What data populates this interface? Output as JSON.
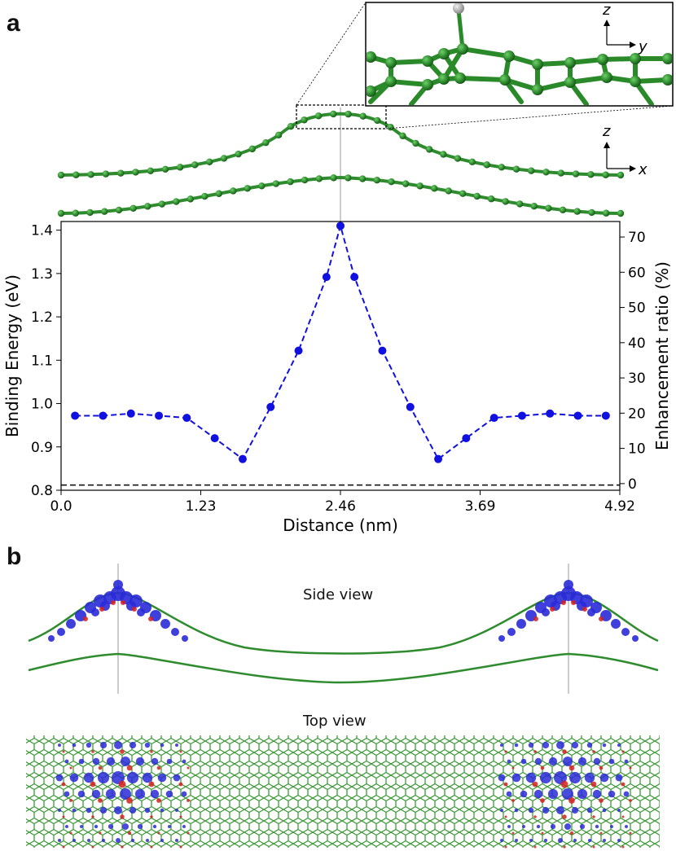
{
  "panels": {
    "a_label": "a",
    "b_label": "b",
    "side_view": "Side view",
    "top_view": "Top view"
  },
  "axis_labels": {
    "x_top_axis": "x",
    "z_top_axis": "z",
    "y_inset_axis": "y",
    "z_inset_axis": "z"
  },
  "colors": {
    "carbon": "#2e8b2e",
    "carbon_dark": "#1f6b1f",
    "series": "#1010e0",
    "reference": "#000000",
    "hydrogen": "#a8a8a8",
    "density_neg": "#2a2ad8",
    "density_pos": "#d62020"
  },
  "chart_data": {
    "type": "line",
    "xlabel": "Distance (nm)",
    "ylabel": "Binding Energy (eV)",
    "y2label": "Enhancement ratio (%)",
    "xlim": [
      0,
      4.92
    ],
    "ylim": [
      0.8,
      1.42
    ],
    "y2lim": [
      -1.88,
      74.4
    ],
    "x_ticks": [
      "0.0",
      "1.23",
      "2.46",
      "3.69",
      "4.92"
    ],
    "x_tick_values": [
      0,
      1.23,
      2.46,
      3.69,
      4.92
    ],
    "y_ticks": [
      "0.8",
      "0.9",
      "1.0",
      "1.1",
      "1.2",
      "1.3",
      "1.4"
    ],
    "y_tick_values": [
      0.8,
      0.9,
      1.0,
      1.1,
      1.2,
      1.3,
      1.4
    ],
    "y2_ticks": [
      "0",
      "10",
      "20",
      "30",
      "40",
      "50",
      "60",
      "70"
    ],
    "y2_tick_values": [
      0,
      10,
      20,
      30,
      40,
      50,
      60,
      70
    ],
    "series": [
      {
        "x": [
          0.123,
          0.369,
          0.615,
          0.861,
          1.107,
          1.353,
          1.599,
          1.845,
          2.091,
          2.337,
          2.46,
          2.583,
          2.829,
          3.075,
          3.321,
          3.567,
          3.813,
          4.059,
          4.305,
          4.551,
          4.797
        ],
        "values": [
          0.972,
          0.972,
          0.977,
          0.972,
          0.967,
          0.92,
          0.872,
          0.992,
          1.122,
          1.292,
          1.41,
          1.292,
          1.122,
          0.992,
          0.872,
          0.92,
          0.967,
          0.972,
          0.977,
          0.972,
          0.972
        ]
      }
    ],
    "reference_line": {
      "y": 0.812
    },
    "grid": false
  }
}
